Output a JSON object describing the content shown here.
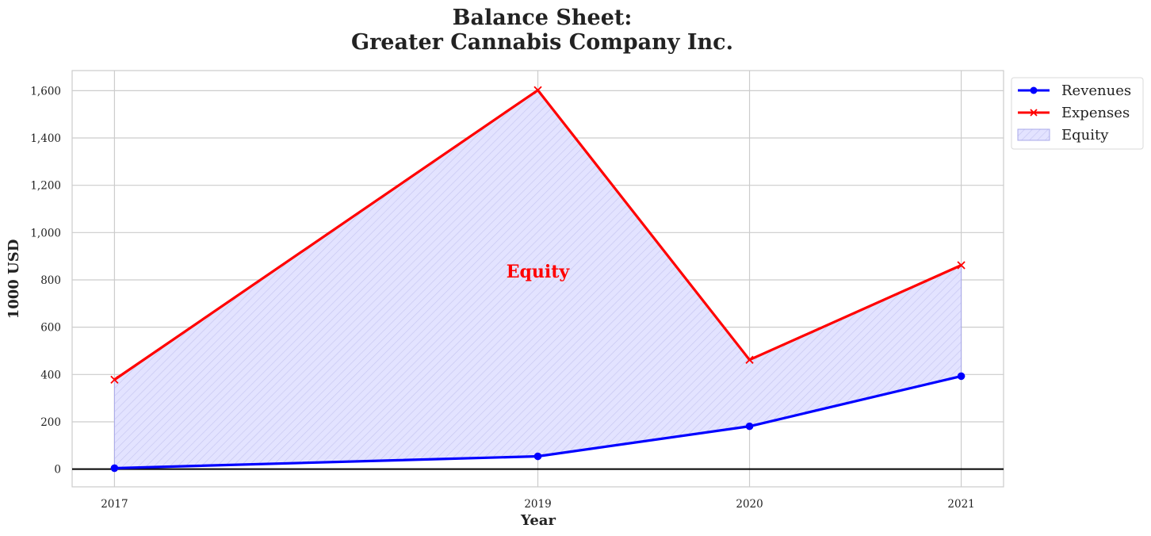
{
  "chart_data": {
    "type": "line",
    "title_line1": "Balance Sheet:",
    "title_line2": "Greater Cannabis Company Inc.",
    "xlabel": "Year",
    "ylabel": "1000 USD",
    "x": [
      2017,
      2019,
      2020,
      2021
    ],
    "x_tick_labels": [
      "2017",
      "2019",
      "2020",
      "2021"
    ],
    "y_ticks": [
      0,
      200,
      400,
      600,
      800,
      1000,
      1200,
      1400,
      1600
    ],
    "y_tick_labels": [
      "0",
      "200",
      "400",
      "600",
      "800",
      "1,000",
      "1,200",
      "1,400",
      "1,600"
    ],
    "xlim": [
      2016.8,
      2021.2
    ],
    "ylim": [
      -75,
      1685
    ],
    "grid": true,
    "legend_position": "outside-top-right",
    "series": [
      {
        "name": "Revenues",
        "values": [
          4,
          54,
          181,
          393
        ],
        "color": "#0000ff",
        "marker": "circle"
      },
      {
        "name": "Expenses",
        "values": [
          378,
          1602,
          462,
          862
        ],
        "color": "#ff0000",
        "marker": "x"
      }
    ],
    "fill": {
      "name": "Equity",
      "between": [
        "Revenues",
        "Expenses"
      ],
      "color": "#0000ff"
    },
    "annotation": {
      "text": "Equity",
      "x": 2019,
      "y": 810,
      "color": "#ff0000"
    }
  }
}
